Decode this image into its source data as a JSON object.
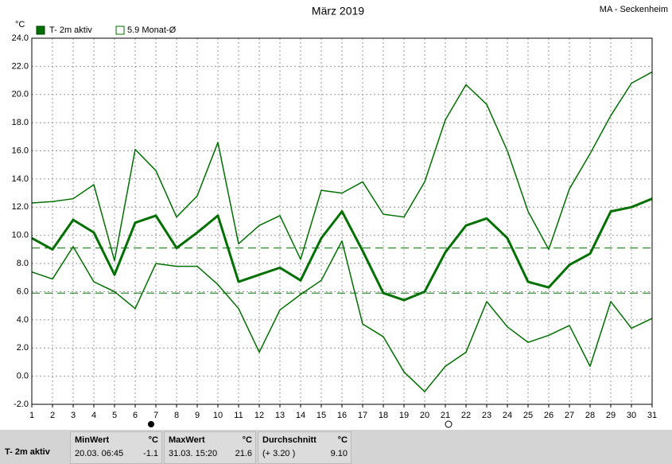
{
  "chart_data": {
    "type": "line",
    "title": "März 2019",
    "subtitle": "MA - Seckenheim",
    "y_label": "°C",
    "x": [
      1,
      2,
      3,
      4,
      5,
      6,
      7,
      8,
      9,
      10,
      11,
      12,
      13,
      14,
      15,
      16,
      17,
      18,
      19,
      20,
      21,
      22,
      23,
      24,
      25,
      26,
      27,
      28,
      29,
      30,
      31
    ],
    "xlim": [
      1,
      31
    ],
    "xticks": [
      1,
      2,
      3,
      4,
      5,
      6,
      7,
      8,
      9,
      10,
      11,
      12,
      13,
      14,
      15,
      16,
      17,
      18,
      19,
      20,
      21,
      22,
      23,
      24,
      25,
      26,
      27,
      28,
      29,
      30,
      31
    ],
    "ylim": [
      -2,
      24
    ],
    "yticks": [
      {
        "value": -2,
        "label": "-2.0"
      },
      {
        "value": 0,
        "label": "0.0"
      },
      {
        "value": 2,
        "label": "2.0"
      },
      {
        "value": 4,
        "label": "4.0"
      },
      {
        "value": 6,
        "label": "6.0"
      },
      {
        "value": 8,
        "label": "8.0"
      },
      {
        "value": 10,
        "label": "10.0"
      },
      {
        "value": 12,
        "label": "12.0"
      },
      {
        "value": 14,
        "label": "14.0"
      },
      {
        "value": 16,
        "label": "16.0"
      },
      {
        "value": 18,
        "label": "18.0"
      },
      {
        "value": 20,
        "label": "20.0"
      },
      {
        "value": 22,
        "label": "22.0"
      },
      {
        "value": 24,
        "label": "24.0"
      }
    ],
    "grid": true,
    "series": [
      {
        "name": "T- 2m aktiv",
        "color": "#007000",
        "linewidth": 3,
        "values": [
          9.8,
          9.0,
          11.1,
          10.2,
          7.2,
          10.9,
          11.4,
          9.1,
          10.2,
          11.4,
          6.7,
          7.2,
          7.7,
          6.8,
          9.8,
          11.7,
          8.9,
          5.9,
          5.4,
          6.0,
          8.8,
          10.7,
          11.2,
          9.8,
          6.7,
          6.3,
          7.9,
          8.7,
          11.7,
          12.0,
          12.6
        ]
      },
      {
        "color": "#007000",
        "linewidth": 1.5,
        "values": [
          12.3,
          12.4,
          12.6,
          13.6,
          8.2,
          16.1,
          14.6,
          11.3,
          12.8,
          16.6,
          9.4,
          10.7,
          11.4,
          8.3,
          13.2,
          13.0,
          13.8,
          11.5,
          11.3,
          13.8,
          18.2,
          20.7,
          19.3,
          16.0,
          11.7,
          9.0,
          13.3,
          15.8,
          18.5,
          20.8,
          21.6
        ]
      },
      {
        "color": "#007000",
        "linewidth": 1.5,
        "values": [
          7.4,
          6.9,
          9.2,
          6.7,
          6.0,
          4.8,
          8.0,
          7.8,
          7.8,
          6.5,
          4.8,
          1.7,
          4.7,
          5.8,
          6.8,
          9.6,
          3.7,
          2.8,
          0.3,
          -1.1,
          0.7,
          1.7,
          5.3,
          3.5,
          2.4,
          2.9,
          3.6,
          0.7,
          5.3,
          3.4,
          4.1
        ]
      }
    ],
    "hlines": [
      {
        "value": 9.1,
        "color": "#007000"
      },
      {
        "value": 5.9,
        "label": "5.9 Monat-Ø",
        "color": "#007000"
      }
    ]
  },
  "footer": {
    "row_label": "T- 2m aktiv",
    "cells": [
      {
        "title": "MinWert",
        "unit": "°C",
        "detail": "20.03.  06:45",
        "value": "-1.1"
      },
      {
        "title": "MaxWert",
        "unit": "°C",
        "detail": "31.03.  15:20",
        "value": "21.6"
      },
      {
        "title": "Durchschnitt",
        "unit": "°C",
        "detail": "(+ 3.20 )",
        "value": "9.10"
      }
    ]
  }
}
